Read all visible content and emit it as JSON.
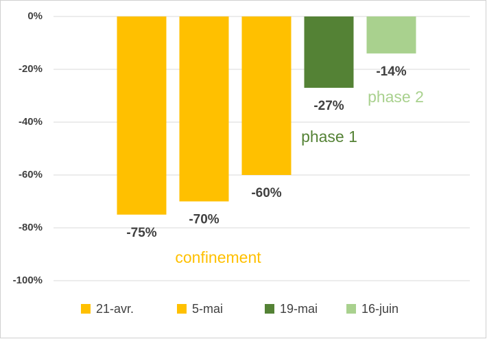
{
  "chart_data": {
    "type": "bar",
    "categories": [
      null,
      null,
      null,
      null,
      null
    ],
    "values": [
      -75,
      -70,
      -60,
      -27,
      -14
    ],
    "value_labels": [
      "-75%",
      "-70%",
      "-60%",
      "-27%",
      "-14%"
    ],
    "colors": [
      "#ffc000",
      "#ffc000",
      "#ffc000",
      "#548235",
      "#a9d18e"
    ],
    "ylim": [
      -100,
      0
    ],
    "yticks": [
      {
        "value": 0,
        "label": "0%"
      },
      {
        "value": -20,
        "label": "-20%"
      },
      {
        "value": -40,
        "label": "-40%"
      },
      {
        "value": -60,
        "label": "-60%"
      },
      {
        "value": -80,
        "label": "-80%"
      },
      {
        "value": -100,
        "label": "-100%"
      }
    ],
    "grid": true,
    "legend": [
      {
        "name": "21-avr.",
        "color": "#ffc000"
      },
      {
        "name": "5-mai",
        "color": "#ffc000"
      },
      {
        "name": "19-mai",
        "color": "#548235"
      },
      {
        "name": "16-juin",
        "color": "#a9d18e"
      }
    ],
    "annotations": [
      {
        "text": "confinement",
        "color": "#ffc000"
      },
      {
        "text": "phase 1",
        "color": "#548235"
      },
      {
        "text": "phase 2",
        "color": "#a9d18e"
      }
    ]
  }
}
